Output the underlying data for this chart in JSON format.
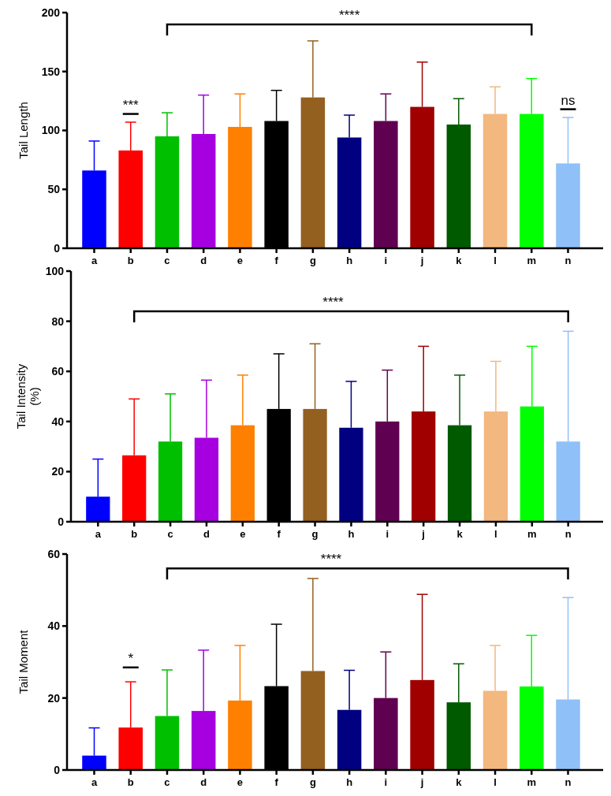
{
  "chart_data": [
    {
      "type": "bar",
      "ylabel": "Tail Length",
      "categories": [
        "a",
        "b",
        "c",
        "d",
        "e",
        "f",
        "g",
        "h",
        "i",
        "j",
        "k",
        "l",
        "m",
        "n"
      ],
      "values": [
        66,
        83,
        95,
        97,
        103,
        108,
        128,
        94,
        108,
        120,
        105,
        114,
        114,
        72
      ],
      "errors": [
        [
          66,
          91
        ],
        [
          83,
          107
        ],
        [
          95,
          115
        ],
        [
          97,
          130
        ],
        [
          103,
          131
        ],
        [
          108,
          134
        ],
        [
          128,
          176
        ],
        [
          94,
          113
        ],
        [
          108,
          131
        ],
        [
          120,
          158
        ],
        [
          105,
          127
        ],
        [
          114,
          137
        ],
        [
          114,
          144
        ],
        [
          72,
          111
        ]
      ],
      "colors": [
        "#0000ff",
        "#ff0000",
        "#00bf00",
        "#a600e0",
        "#ff8000",
        "#000000",
        "#936020",
        "#000080",
        "#600050",
        "#a00000",
        "#005a00",
        "#f2b880",
        "#00ff00",
        "#90c0f8"
      ],
      "ylim": [
        0,
        200
      ],
      "yticks": [
        0,
        50,
        100,
        150,
        200
      ],
      "annotations": [
        "****",
        "***",
        "ns"
      ]
    },
    {
      "type": "bar",
      "ylabel": "Tail Intensity\n(%)",
      "categories": [
        "a",
        "b",
        "c",
        "d",
        "e",
        "f",
        "g",
        "h",
        "i",
        "j",
        "k",
        "l",
        "m",
        "n"
      ],
      "values": [
        10,
        26.5,
        32,
        33.5,
        38.5,
        45,
        45,
        37.5,
        40,
        44,
        38.5,
        44,
        46,
        32
      ],
      "errors": [
        [
          10,
          25
        ],
        [
          26.5,
          49
        ],
        [
          32,
          51
        ],
        [
          33.5,
          56.5
        ],
        [
          38.5,
          58.5
        ],
        [
          45,
          67
        ],
        [
          45,
          71
        ],
        [
          37.5,
          56
        ],
        [
          40,
          60.5
        ],
        [
          44,
          70
        ],
        [
          38.5,
          58.5
        ],
        [
          44,
          64
        ],
        [
          46,
          70
        ],
        [
          32,
          76
        ]
      ],
      "colors": [
        "#0000ff",
        "#ff0000",
        "#00bf00",
        "#a600e0",
        "#ff8000",
        "#000000",
        "#936020",
        "#000080",
        "#600050",
        "#a00000",
        "#005a00",
        "#f2b880",
        "#00ff00",
        "#90c0f8"
      ],
      "ylim": [
        0,
        100
      ],
      "yticks": [
        0,
        20,
        40,
        60,
        80,
        100
      ],
      "annotations": [
        "****"
      ]
    },
    {
      "type": "bar",
      "ylabel": "Tail Moment",
      "categories": [
        "a",
        "b",
        "c",
        "d",
        "e",
        "f",
        "g",
        "h",
        "i",
        "j",
        "k",
        "l",
        "m",
        "n"
      ],
      "values": [
        4,
        11.8,
        15,
        16.4,
        19.3,
        23.3,
        27.5,
        16.7,
        20,
        25,
        18.8,
        22,
        23.2,
        19.6
      ],
      "errors": [
        [
          4,
          11.7
        ],
        [
          11.8,
          24.5
        ],
        [
          15,
          27.8
        ],
        [
          16.4,
          33.3
        ],
        [
          19.3,
          34.6
        ],
        [
          23.3,
          40.5
        ],
        [
          27.5,
          53.2
        ],
        [
          16.7,
          27.7
        ],
        [
          20,
          32.8
        ],
        [
          25,
          48.8
        ],
        [
          18.8,
          29.5
        ],
        [
          22,
          34.6
        ],
        [
          23.2,
          37.4
        ],
        [
          19.6,
          47.9
        ]
      ],
      "colors": [
        "#0000ff",
        "#ff0000",
        "#00bf00",
        "#a600e0",
        "#ff8000",
        "#000000",
        "#936020",
        "#000080",
        "#600050",
        "#a00000",
        "#005a00",
        "#f2b880",
        "#00ff00",
        "#90c0f8"
      ],
      "ylim": [
        0,
        60
      ],
      "yticks": [
        0,
        20,
        40,
        60
      ],
      "annotations": [
        "****",
        "*"
      ]
    }
  ]
}
